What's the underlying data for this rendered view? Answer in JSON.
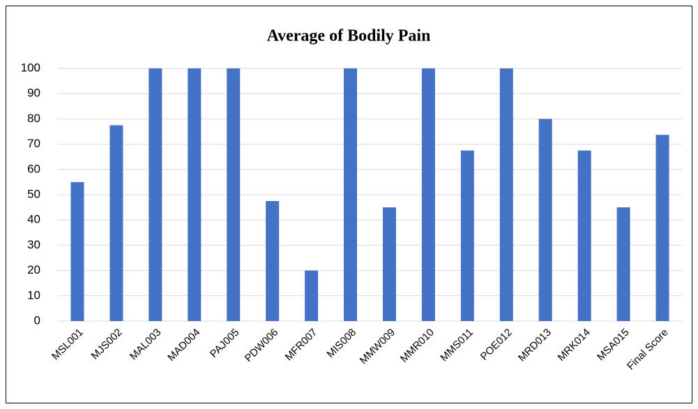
{
  "chart_data": {
    "type": "bar",
    "title": "Average of Bodily Pain",
    "categories": [
      "MSL001",
      "MJS002",
      "MAL003",
      "MAD004",
      "PAJ005",
      "PDW006",
      "MFR007",
      "MIS008",
      "MMW009",
      "MMR010",
      "MMS011",
      "POE012",
      "MRD013",
      "MRK014",
      "MSA015",
      "Final Score"
    ],
    "values": [
      55,
      77.5,
      100,
      100,
      100,
      47.5,
      20,
      100,
      45,
      100,
      67.5,
      100,
      80,
      67.5,
      45,
      73.7
    ],
    "color": "#4472c4",
    "ylim": [
      0,
      100
    ],
    "yticks": [
      0,
      10,
      20,
      30,
      40,
      50,
      60,
      70,
      80,
      90,
      100
    ],
    "grid": true
  }
}
